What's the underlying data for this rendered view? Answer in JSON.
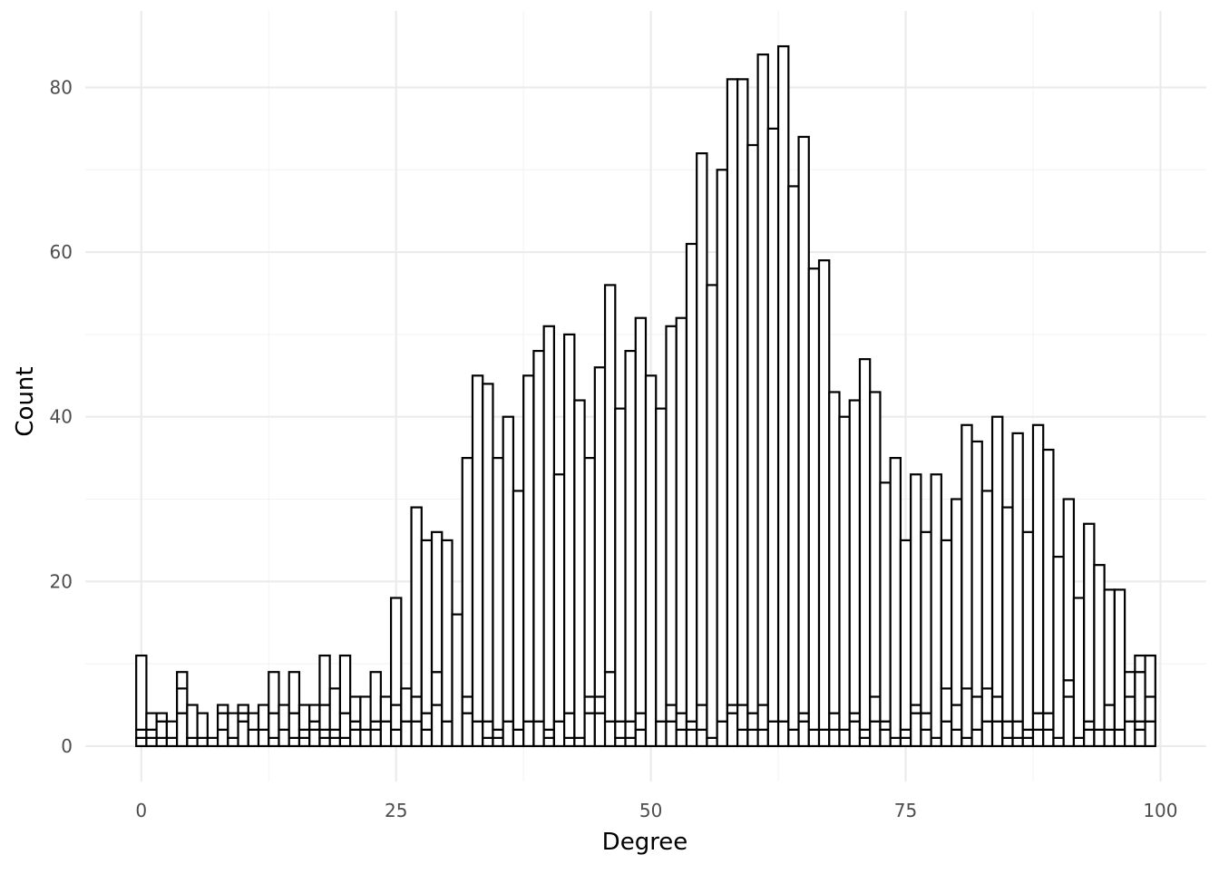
{
  "chart_data": {
    "type": "bar",
    "subtype": "stacked-histogram-outline",
    "xlabel": "Degree",
    "ylabel": "Count",
    "xlim": [
      -5.5,
      104.5
    ],
    "ylim": [
      -4.3,
      89.3
    ],
    "x_ticks": [
      0,
      25,
      50,
      75,
      100
    ],
    "y_ticks": [
      0,
      20,
      40,
      60,
      80
    ],
    "grid": true,
    "bar_fill": "#ffffff",
    "bar_stroke": "#000000",
    "series_note": "stacked groups; values listed are cumulative heights of each stack layer",
    "x": [
      0,
      1,
      2,
      3,
      4,
      5,
      6,
      7,
      8,
      9,
      10,
      11,
      12,
      13,
      14,
      15,
      16,
      17,
      18,
      19,
      20,
      21,
      22,
      23,
      24,
      25,
      26,
      27,
      28,
      29,
      30,
      31,
      32,
      33,
      34,
      35,
      36,
      37,
      38,
      39,
      40,
      41,
      42,
      43,
      44,
      45,
      46,
      47,
      48,
      49,
      50,
      51,
      52,
      53,
      54,
      55,
      56,
      57,
      58,
      59,
      60,
      61,
      62,
      63,
      64,
      65,
      66,
      67,
      68,
      69,
      70,
      71,
      72,
      73,
      74,
      75,
      76,
      77,
      78,
      79,
      80,
      81,
      82,
      83,
      84,
      85,
      86,
      87,
      88,
      89,
      90,
      91,
      92,
      93,
      94,
      95,
      96,
      97,
      98,
      99
    ],
    "stack_levels": [
      [
        1,
        2,
        11
      ],
      [
        1,
        2,
        4
      ],
      [
        1,
        3,
        4
      ],
      [
        1,
        3
      ],
      [
        4,
        7,
        9
      ],
      [
        1,
        5
      ],
      [
        1,
        4
      ],
      [
        1
      ],
      [
        2,
        4,
        5
      ],
      [
        1,
        4
      ],
      [
        3,
        4,
        5
      ],
      [
        2,
        4
      ],
      [
        2,
        5
      ],
      [
        1,
        4,
        9
      ],
      [
        2,
        5
      ],
      [
        1,
        4,
        9
      ],
      [
        1,
        2,
        5
      ],
      [
        2,
        3,
        5
      ],
      [
        1,
        2,
        5,
        11
      ],
      [
        1,
        2,
        7
      ],
      [
        1,
        4,
        11
      ],
      [
        2,
        3,
        6
      ],
      [
        2,
        6
      ],
      [
        2,
        3,
        9
      ],
      [
        3,
        6
      ],
      [
        2,
        5,
        18
      ],
      [
        3,
        7
      ],
      [
        3,
        6,
        29
      ],
      [
        2,
        4,
        25
      ],
      [
        5,
        9,
        26
      ],
      [
        3,
        25
      ],
      [
        16
      ],
      [
        4,
        6,
        35
      ],
      [
        3,
        45
      ],
      [
        1,
        3,
        44
      ],
      [
        1,
        2,
        35
      ],
      [
        3,
        40
      ],
      [
        2,
        31
      ],
      [
        3,
        45
      ],
      [
        3,
        48
      ],
      [
        1,
        2,
        51
      ],
      [
        3,
        33
      ],
      [
        1,
        4,
        50
      ],
      [
        1,
        42
      ],
      [
        4,
        6,
        35
      ],
      [
        4,
        6,
        46
      ],
      [
        3,
        9,
        56
      ],
      [
        1,
        3,
        41
      ],
      [
        1,
        3,
        48
      ],
      [
        2,
        4,
        52
      ],
      [
        45
      ],
      [
        3,
        41
      ],
      [
        3,
        5,
        51
      ],
      [
        2,
        4,
        52
      ],
      [
        2,
        3,
        61
      ],
      [
        2,
        5,
        72
      ],
      [
        1,
        56
      ],
      [
        3,
        70
      ],
      [
        4,
        5,
        81
      ],
      [
        2,
        5,
        81
      ],
      [
        2,
        4,
        73
      ],
      [
        2,
        5,
        84
      ],
      [
        3,
        75
      ],
      [
        3,
        85
      ],
      [
        2,
        68
      ],
      [
        3,
        4,
        74
      ],
      [
        2,
        58
      ],
      [
        2,
        59
      ],
      [
        2,
        4,
        43
      ],
      [
        2,
        40
      ],
      [
        3,
        4,
        42
      ],
      [
        1,
        2,
        47
      ],
      [
        3,
        6,
        43
      ],
      [
        2,
        3,
        32
      ],
      [
        1,
        35
      ],
      [
        1,
        2,
        25
      ],
      [
        4,
        5,
        33
      ],
      [
        2,
        4,
        26
      ],
      [
        1,
        33
      ],
      [
        3,
        7,
        25
      ],
      [
        2,
        5,
        30
      ],
      [
        1,
        7,
        39
      ],
      [
        2,
        6,
        37
      ],
      [
        3,
        7,
        31
      ],
      [
        3,
        6,
        40
      ],
      [
        1,
        3,
        29
      ],
      [
        1,
        3,
        38
      ],
      [
        1,
        2,
        26
      ],
      [
        2,
        4,
        39
      ],
      [
        2,
        4,
        36
      ],
      [
        1,
        23
      ],
      [
        6,
        8,
        30
      ],
      [
        1,
        18
      ],
      [
        2,
        3,
        27
      ],
      [
        2,
        22
      ],
      [
        2,
        5,
        19
      ],
      [
        2,
        19
      ],
      [
        3,
        6,
        9
      ],
      [
        2,
        3,
        9,
        11
      ],
      [
        3,
        6,
        11
      ]
    ]
  }
}
